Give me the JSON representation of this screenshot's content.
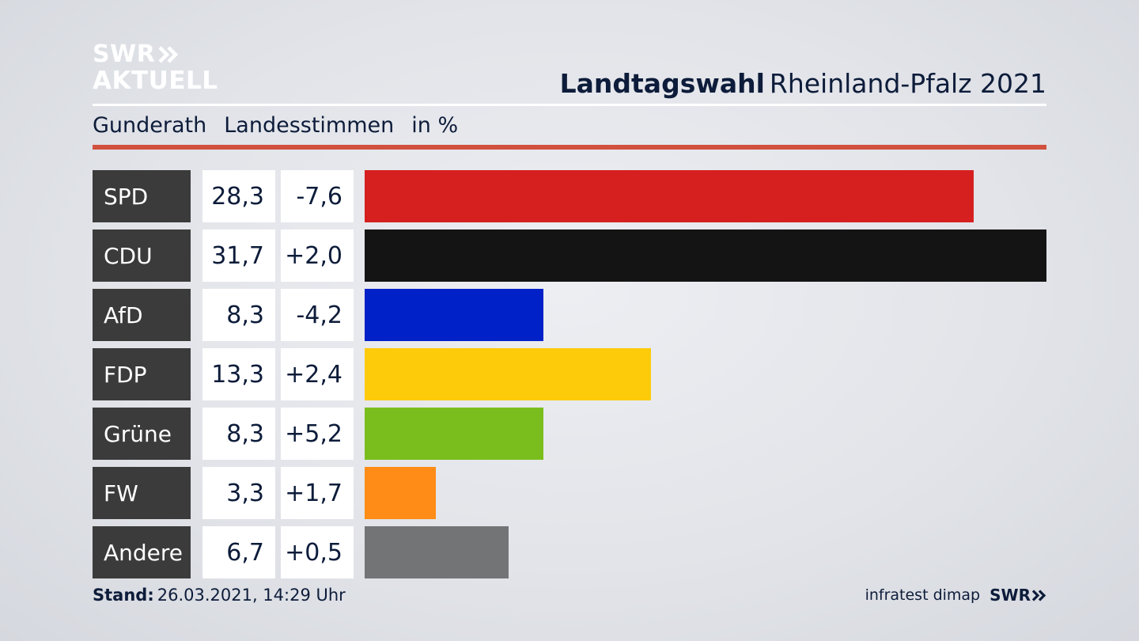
{
  "logo": {
    "line1": "SWR",
    "line2": "AKTUELL"
  },
  "header": {
    "title_bold": "Landtagswahl",
    "title_regular": "Rheinland-Pfalz 2021"
  },
  "subheader": {
    "place": "Gunderath",
    "vote_type": "Landesstimmen",
    "unit": "in %"
  },
  "footer": {
    "stand_label": "Stand:",
    "stand_value": "26.03.2021, 14:29 Uhr",
    "source": "infratest dimap",
    "brand": "SWR"
  },
  "colors": {
    "accent_rule": "#d1513e",
    "label_bg": "#3b3b3b"
  },
  "chart_data": {
    "type": "bar",
    "categories": [
      "SPD",
      "CDU",
      "AfD",
      "FDP",
      "Grüne",
      "FW",
      "Andere"
    ],
    "values": [
      28.3,
      31.7,
      8.3,
      13.3,
      8.3,
      3.3,
      6.7
    ],
    "values_label": [
      "28,3",
      "31,7",
      "8,3",
      "13,3",
      "8,3",
      "3,3",
      "6,7"
    ],
    "changes_label": [
      "-7,6",
      "+2,0",
      "-4,2",
      "+2,4",
      "+5,2",
      "+1,7",
      "+0,5"
    ],
    "colors": [
      "#d62020",
      "#141414",
      "#0021c8",
      "#fdcb0a",
      "#7abe1e",
      "#ff8c16",
      "#737476"
    ],
    "xlim": [
      0,
      31.7
    ]
  }
}
